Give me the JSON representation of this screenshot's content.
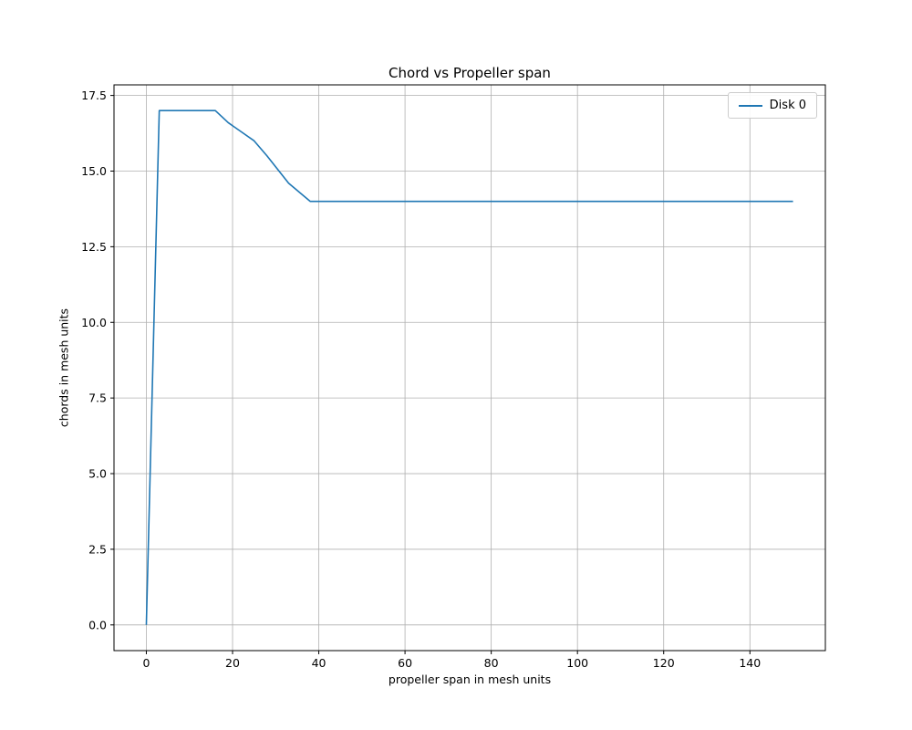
{
  "chart_data": {
    "type": "line",
    "title": "Chord vs Propeller span",
    "xlabel": "propeller span in mesh units",
    "ylabel": "chords in mesh units",
    "xlim": [
      -7.5,
      157.5
    ],
    "ylim": [
      -0.85,
      17.85
    ],
    "grid": true,
    "grid_color": "#b0b0b0",
    "axes_color": "#000000",
    "legend_position": "upper right",
    "xticks": [
      0,
      20,
      40,
      60,
      80,
      100,
      120,
      140
    ],
    "xtick_labels": [
      "0",
      "20",
      "40",
      "60",
      "80",
      "100",
      "120",
      "140"
    ],
    "yticks": [
      0.0,
      2.5,
      5.0,
      7.5,
      10.0,
      12.5,
      15.0,
      17.5
    ],
    "ytick_labels": [
      "0.0",
      "2.5",
      "5.0",
      "7.5",
      "10.0",
      "12.5",
      "15.0",
      "17.5"
    ],
    "series": [
      {
        "name": "Disk 0",
        "color": "#1f77b4",
        "x": [
          0,
          3,
          16,
          19,
          22,
          25,
          28,
          33,
          38,
          150
        ],
        "y": [
          0,
          17,
          17,
          16.6,
          16.3,
          16.0,
          15.5,
          14.6,
          14.0,
          14.0
        ]
      }
    ]
  }
}
